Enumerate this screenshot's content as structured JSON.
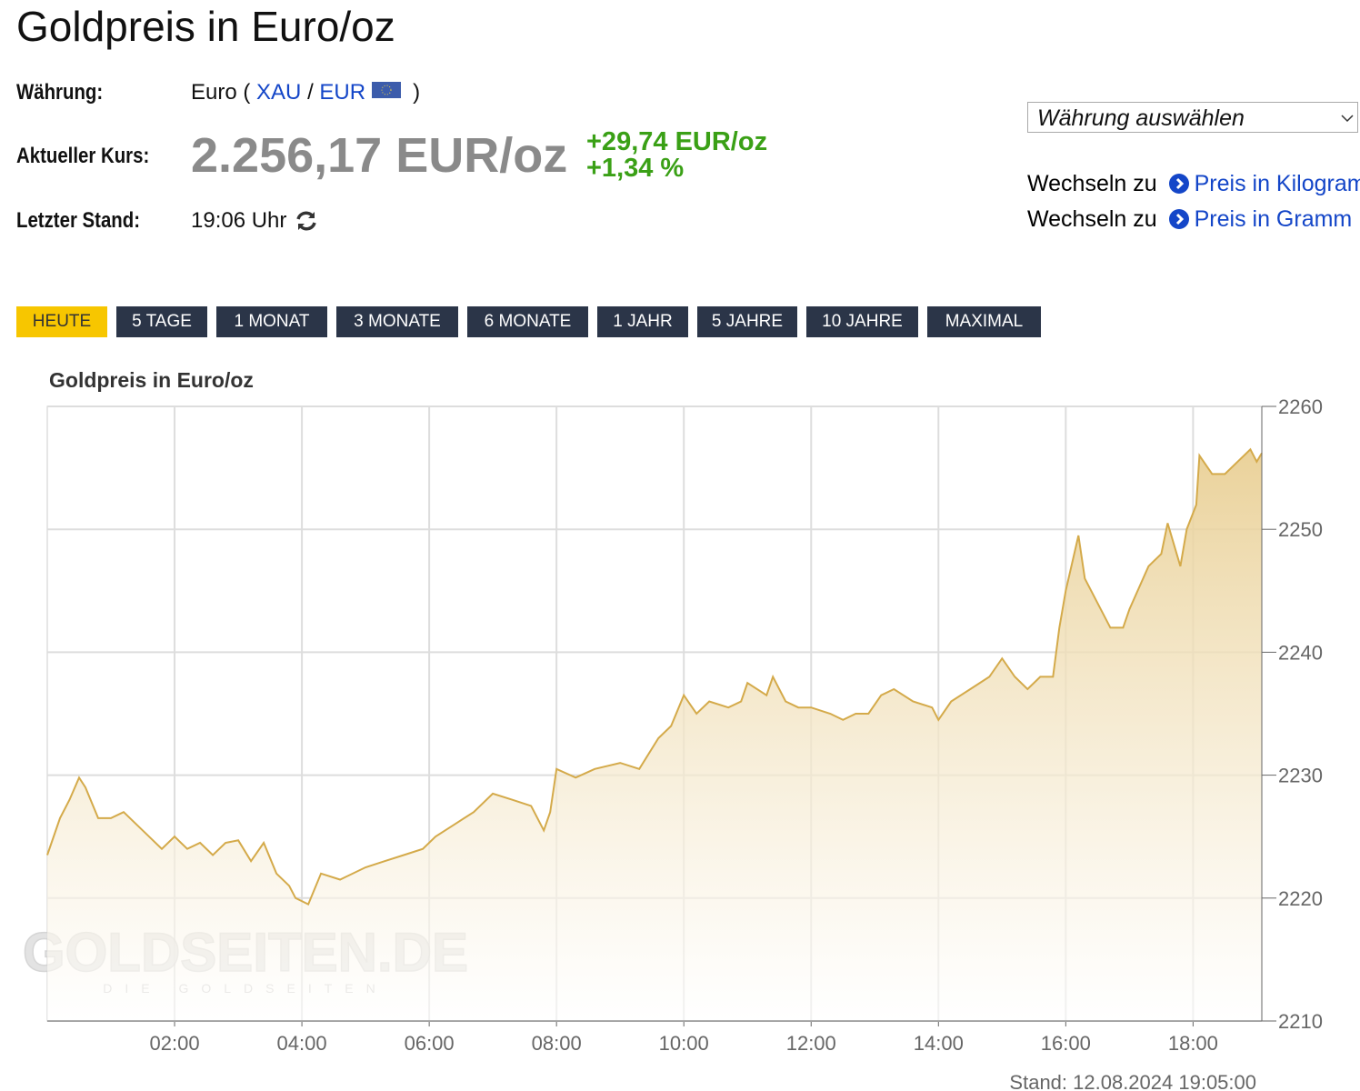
{
  "header": {
    "title": "Goldpreis in Euro/oz",
    "currency_label": "Währung:",
    "currency_prefix": "Euro (",
    "currency_xau": "XAU",
    "currency_sep": "/",
    "currency_eur": "EUR",
    "currency_suffix": ")",
    "price_label": "Aktueller Kurs:",
    "price": "2.256,17 EUR/oz",
    "change_abs": "+29,74 EUR/oz",
    "change_pct": "+1,34 %",
    "time_label": "Letzter Stand:",
    "time": "19:06 Uhr"
  },
  "sidebar": {
    "select": "Währung auswählen",
    "links": [
      {
        "prefix": "Wechseln zu",
        "link": "Preis in Kilogramm"
      },
      {
        "prefix": "Wechseln zu",
        "link": "Preis in Gramm"
      }
    ]
  },
  "tabs": {
    "items": [
      "HEUTE",
      "5 TAGE",
      "1 MONAT",
      "3 MONATE",
      "6 MONATE",
      "1 JAHR",
      "5 JAHRE",
      "10 JAHRE",
      "MAXIMAL"
    ],
    "active": 0
  },
  "chart_data": {
    "type": "area",
    "title": "Goldpreis in Euro/oz",
    "color": "#d4aa4a",
    "grid": true,
    "watermark": "GOLDSEITEN.DE",
    "watermark_sub": "DIE GOLDSEITEN",
    "footnote": "Stand: 12.08.2024 19:05:00",
    "xlim": [
      0,
      19.08
    ],
    "ylim": [
      2210,
      2260
    ],
    "xticks": [
      {
        "value": 2,
        "label": "02:00"
      },
      {
        "value": 4,
        "label": "04:00"
      },
      {
        "value": 6,
        "label": "06:00"
      },
      {
        "value": 8,
        "label": "08:00"
      },
      {
        "value": 10,
        "label": "10:00"
      },
      {
        "value": 12,
        "label": "12:00"
      },
      {
        "value": 14,
        "label": "14:00"
      },
      {
        "value": 16,
        "label": "16:00"
      },
      {
        "value": 18,
        "label": "18:00"
      }
    ],
    "yticks": [
      2210,
      2220,
      2230,
      2240,
      2250,
      2260
    ],
    "x": [
      0,
      0.2,
      0.35,
      0.5,
      0.6,
      0.8,
      1.0,
      1.2,
      1.4,
      1.6,
      1.8,
      2.0,
      2.2,
      2.4,
      2.6,
      2.8,
      3.0,
      3.2,
      3.4,
      3.6,
      3.8,
      3.9,
      4.1,
      4.3,
      4.6,
      5.0,
      5.3,
      5.6,
      5.9,
      6.1,
      6.4,
      6.7,
      7.0,
      7.3,
      7.6,
      7.8,
      7.9,
      8.0,
      8.3,
      8.6,
      9.0,
      9.3,
      9.6,
      9.8,
      10.0,
      10.2,
      10.4,
      10.7,
      10.9,
      11.0,
      11.3,
      11.4,
      11.6,
      11.8,
      12.0,
      12.3,
      12.5,
      12.7,
      12.9,
      13.1,
      13.3,
      13.6,
      13.9,
      14.0,
      14.2,
      14.5,
      14.8,
      15.0,
      15.2,
      15.4,
      15.6,
      15.8,
      15.9,
      16.0,
      16.2,
      16.3,
      16.5,
      16.7,
      16.9,
      17.0,
      17.3,
      17.5,
      17.6,
      17.8,
      17.9,
      18.05,
      18.1,
      18.3,
      18.5,
      18.7,
      18.9,
      19.0,
      19.08
    ],
    "values": [
      2223.5,
      2226.5,
      2228,
      2229.8,
      2229,
      2226.5,
      2226.5,
      2227,
      2226,
      2225,
      2224,
      2225,
      2224,
      2224.5,
      2223.5,
      2224.5,
      2224.7,
      2223,
      2224.5,
      2222,
      2221,
      2220,
      2219.5,
      2222,
      2221.5,
      2222.5,
      2223,
      2223.5,
      2224,
      2225,
      2226,
      2227,
      2228.5,
      2228,
      2227.5,
      2225.5,
      2227,
      2230.5,
      2229.8,
      2230.5,
      2231,
      2230.5,
      2233,
      2234,
      2236.5,
      2235,
      2236,
      2235.5,
      2236,
      2237.5,
      2236.5,
      2238,
      2236,
      2235.5,
      2235.5,
      2235,
      2234.5,
      2235,
      2235,
      2236.5,
      2237,
      2236,
      2235.5,
      2234.5,
      2236,
      2237,
      2238,
      2239.5,
      2238,
      2237,
      2238,
      2238,
      2242,
      2245,
      2249.5,
      2246,
      2244,
      2242,
      2242,
      2243.5,
      2247,
      2248,
      2250.5,
      2247,
      2250,
      2252,
      2256,
      2254.5,
      2254.5,
      2255.5,
      2256.5,
      2255.5,
      2256.2
    ]
  }
}
